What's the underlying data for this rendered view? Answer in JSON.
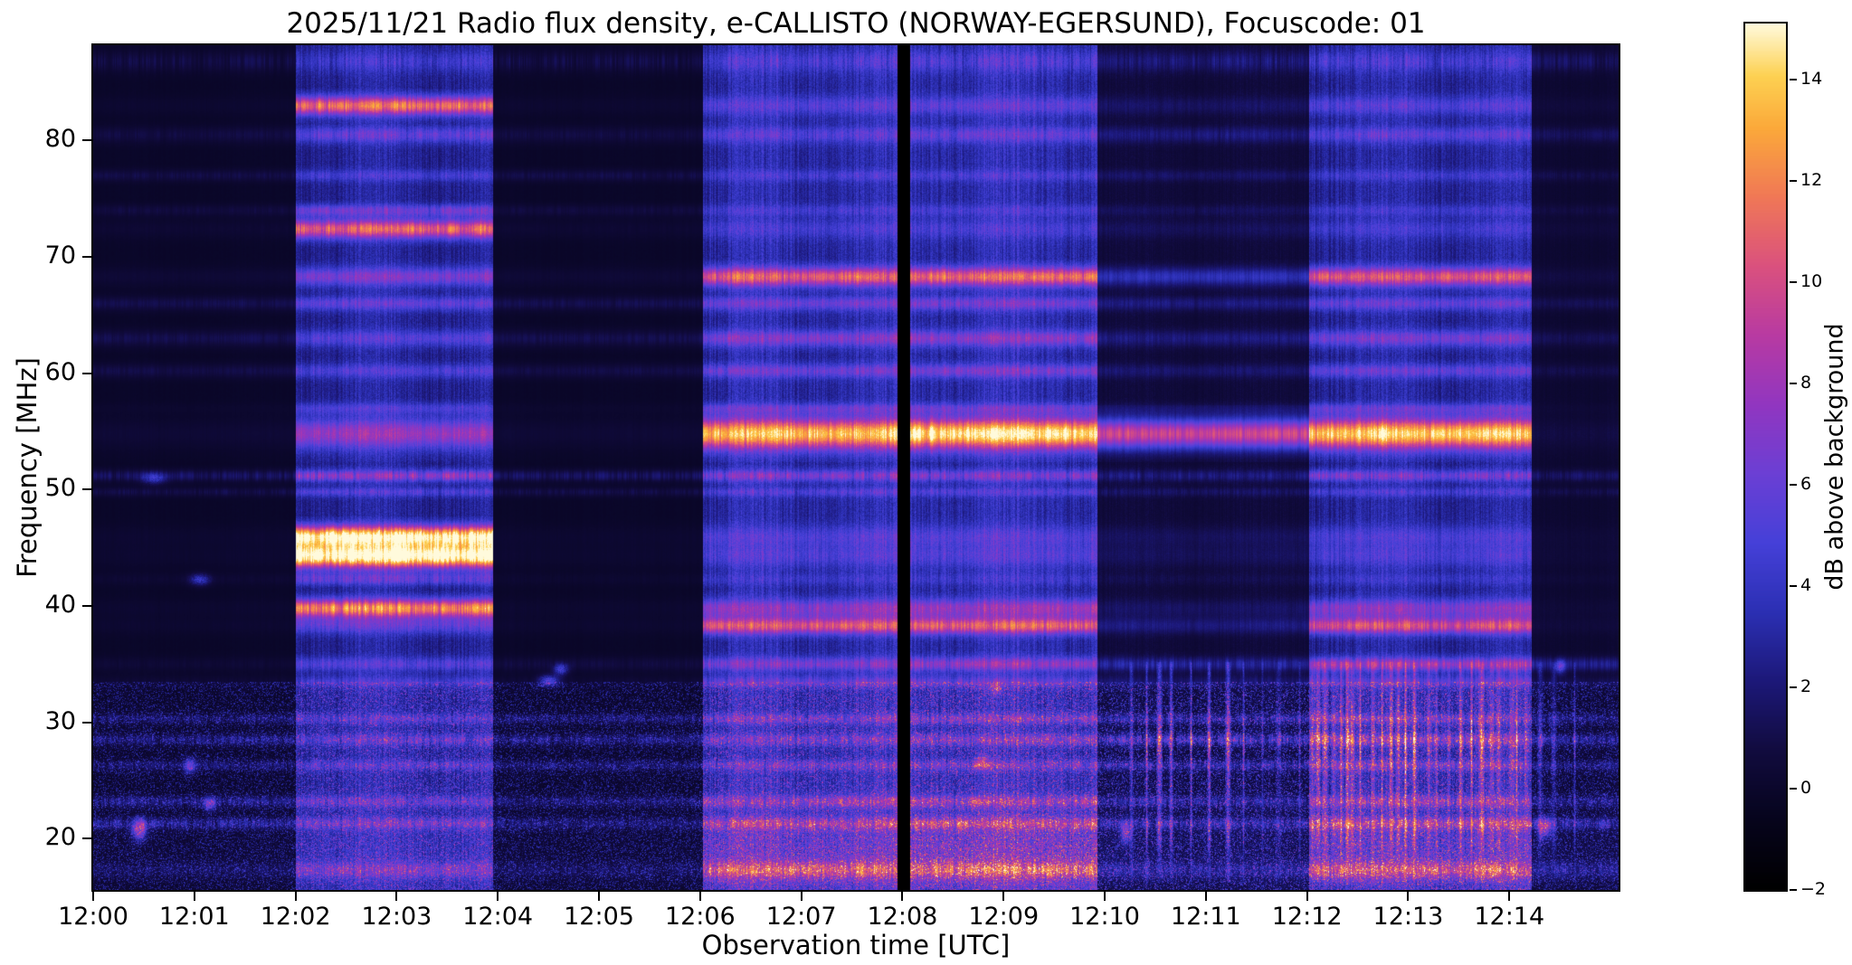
{
  "figure": {
    "title": "2025/11/21  Radio flux density, e-CALLISTO (NORWAY-EGERSUND), Focuscode: 01",
    "xlabel": "Observation time [UTC]",
    "ylabel": "Frequency [MHz]",
    "colorbar_label": "dB above background",
    "background": "#ffffff"
  },
  "chart_data": {
    "type": "heatmap",
    "subtype": "solar-radio-spectrogram",
    "title": "2025/11/21  Radio flux density, e-CALLISTO (NORWAY-EGERSUND), Focuscode: 01",
    "xlabel": "Observation time [UTC]",
    "ylabel": "Frequency [MHz]",
    "colorbar_label": "dB above background",
    "x_ticks": [
      [
        0,
        "12:00"
      ],
      [
        1,
        "12:01"
      ],
      [
        2,
        "12:02"
      ],
      [
        3,
        "12:03"
      ],
      [
        4,
        "12:04"
      ],
      [
        5,
        "12:05"
      ],
      [
        6,
        "12:06"
      ],
      [
        7,
        "12:07"
      ],
      [
        8,
        "12:08"
      ],
      [
        9,
        "12:09"
      ],
      [
        10,
        "12:10"
      ],
      [
        11,
        "12:11"
      ],
      [
        12,
        "12:12"
      ],
      [
        13,
        "12:13"
      ],
      [
        14,
        "12:14"
      ]
    ],
    "y_ticks": [
      [
        20,
        "20"
      ],
      [
        30,
        "30"
      ],
      [
        40,
        "40"
      ],
      [
        50,
        "50"
      ],
      [
        60,
        "60"
      ],
      [
        70,
        "70"
      ],
      [
        80,
        "80"
      ]
    ],
    "colorbar_ticks": [
      [
        -2,
        "−2"
      ],
      [
        0,
        "0"
      ],
      [
        2,
        "2"
      ],
      [
        4,
        "4"
      ],
      [
        6,
        "6"
      ],
      [
        8,
        "8"
      ],
      [
        10,
        "10"
      ],
      [
        12,
        "12"
      ],
      [
        14,
        "14"
      ]
    ],
    "x_range_minutes": [
      0,
      15.08
    ],
    "freq_range_mhz": [
      15.6,
      88.2
    ],
    "value_range_db": [
      -2,
      15.1
    ],
    "grid": false,
    "colormap": [
      [
        0.0,
        "#000000"
      ],
      [
        0.08,
        "#06041c"
      ],
      [
        0.16,
        "#110b3e"
      ],
      [
        0.24,
        "#1c1878"
      ],
      [
        0.32,
        "#2b2fb3"
      ],
      [
        0.4,
        "#4540d8"
      ],
      [
        0.48,
        "#6b3fd4"
      ],
      [
        0.56,
        "#9136c0"
      ],
      [
        0.64,
        "#b83aa2"
      ],
      [
        0.72,
        "#da517e"
      ],
      [
        0.8,
        "#f07856"
      ],
      [
        0.88,
        "#fba93a"
      ],
      [
        0.94,
        "#fdd152"
      ],
      [
        1.0,
        "#fffadc"
      ]
    ],
    "segments": [
      {
        "t0": 0.0,
        "t1": 2.0,
        "wash": 0.25
      },
      {
        "t0": 2.0,
        "t1": 3.95,
        "wash": 3.2
      },
      {
        "t0": 3.95,
        "t1": 6.03,
        "wash": 0.25
      },
      {
        "t0": 6.03,
        "t1": 7.95,
        "wash": 3.6
      },
      {
        "t0": 7.95,
        "t1": 8.08,
        "wash": -2.0
      },
      {
        "t0": 8.08,
        "t1": 9.93,
        "wash": 3.8
      },
      {
        "t0": 9.93,
        "t1": 12.02,
        "wash": 0.9
      },
      {
        "t0": 12.02,
        "t1": 14.22,
        "wash": 3.3
      },
      {
        "t0": 14.22,
        "t1": 15.08,
        "wash": 0.6
      }
    ],
    "spectral_lines": [
      {
        "f": 86.8,
        "w": 0.9,
        "jitter": 0.8,
        "amp": [
          1.0,
          1.6,
          1.0,
          1.8,
          0,
          1.8,
          1.4,
          1.8,
          1.2
        ]
      },
      {
        "f": 83.0,
        "w": 0.8,
        "jitter": 0.3,
        "amp": [
          0.3,
          8.5,
          0.3,
          2.2,
          0,
          2.4,
          1.0,
          2.4,
          0.4
        ]
      },
      {
        "f": 80.5,
        "w": 0.7,
        "jitter": 0.45,
        "amp": [
          0.9,
          3.0,
          0.9,
          2.2,
          0,
          2.6,
          1.6,
          2.6,
          1.1
        ]
      },
      {
        "f": 77.0,
        "w": 0.5,
        "jitter": 0.45,
        "amp": [
          1.0,
          2.0,
          1.0,
          1.6,
          0,
          1.6,
          1.0,
          1.6,
          0.8
        ]
      },
      {
        "f": 74.0,
        "w": 0.5,
        "jitter": 0.45,
        "amp": [
          0.8,
          3.5,
          0.8,
          1.5,
          0,
          1.5,
          0.8,
          1.5,
          0.6
        ]
      },
      {
        "f": 72.4,
        "w": 0.8,
        "jitter": 0.3,
        "amp": [
          0.4,
          8.0,
          0.4,
          1.6,
          0,
          1.6,
          0.8,
          1.6,
          0.4
        ]
      },
      {
        "f": 68.3,
        "w": 0.8,
        "jitter": 0.25,
        "amp": [
          0.5,
          4.0,
          0.5,
          7.5,
          0,
          8.0,
          3.0,
          7.5,
          0.6
        ]
      },
      {
        "f": 66.0,
        "w": 0.6,
        "jitter": 0.35,
        "amp": [
          1.2,
          3.0,
          1.2,
          3.0,
          0,
          3.2,
          1.6,
          3.0,
          1.0
        ]
      },
      {
        "f": 63.0,
        "w": 0.7,
        "jitter": 0.35,
        "amp": [
          1.2,
          2.6,
          1.2,
          3.6,
          0,
          4.0,
          1.6,
          3.6,
          1.0
        ]
      },
      {
        "f": 60.2,
        "w": 0.6,
        "jitter": 0.35,
        "amp": [
          1.0,
          2.4,
          1.0,
          3.0,
          0,
          3.4,
          1.2,
          3.0,
          0.8
        ]
      },
      {
        "f": 57.0,
        "w": 0.5,
        "jitter": 0.3,
        "amp": [
          0.2,
          2.0,
          0.2,
          2.4,
          0,
          2.4,
          0.8,
          2.4,
          0.2
        ]
      },
      {
        "f": 54.8,
        "w": 1.3,
        "jitter": 0.2,
        "amp": [
          0.5,
          5.0,
          0.5,
          10.5,
          0,
          11.5,
          9.0,
          11.0,
          0.6
        ]
      },
      {
        "f": 51.2,
        "w": 0.5,
        "jitter": 0.6,
        "amp": [
          1.6,
          4.5,
          1.6,
          3.5,
          0,
          3.5,
          1.6,
          3.5,
          1.3
        ]
      },
      {
        "f": 49.8,
        "w": 0.4,
        "jitter": 0.6,
        "amp": [
          1.0,
          2.4,
          1.0,
          2.0,
          0,
          2.0,
          1.0,
          2.0,
          0.8
        ]
      },
      {
        "f": 46.0,
        "w": 0.9,
        "jitter": 0.25,
        "amp": [
          0.3,
          12.5,
          0.3,
          2.0,
          0,
          2.0,
          0.8,
          2.0,
          0.3
        ]
      },
      {
        "f": 44.3,
        "w": 1.0,
        "jitter": 0.25,
        "amp": [
          0.3,
          13.5,
          0.3,
          2.0,
          0,
          2.0,
          0.8,
          2.0,
          0.3
        ]
      },
      {
        "f": 42.3,
        "w": 0.5,
        "jitter": 0.5,
        "amp": [
          0.4,
          3.0,
          0.3,
          1.2,
          0,
          1.2,
          0.5,
          1.2,
          0.3
        ]
      },
      {
        "f": 39.8,
        "w": 0.8,
        "jitter": 0.3,
        "amp": [
          0.3,
          9.5,
          0.3,
          4.2,
          0,
          4.6,
          1.0,
          4.2,
          0.3
        ]
      },
      {
        "f": 38.3,
        "w": 0.7,
        "jitter": 0.3,
        "amp": [
          0.3,
          3.0,
          0.3,
          7.0,
          0,
          7.5,
          1.6,
          7.0,
          0.4
        ]
      },
      {
        "f": 35.0,
        "w": 0.6,
        "jitter": 0.5,
        "amp": [
          0.5,
          2.5,
          0.8,
          3.6,
          0,
          4.0,
          2.2,
          5.0,
          2.2
        ]
      },
      {
        "f": 33.5,
        "w": 0.5,
        "jitter": 0.5,
        "amp": [
          0.5,
          2.0,
          0.5,
          2.6,
          0,
          2.6,
          1.2,
          2.6,
          0.9
        ]
      },
      {
        "f": 30.3,
        "w": 0.45,
        "jitter": 0.85,
        "amp": [
          1.5,
          2.0,
          1.5,
          2.6,
          0,
          2.6,
          2.0,
          2.6,
          1.5
        ]
      },
      {
        "f": 28.5,
        "w": 0.5,
        "jitter": 0.85,
        "amp": [
          1.8,
          2.2,
          1.8,
          2.6,
          0,
          2.9,
          2.8,
          3.2,
          2.0
        ]
      },
      {
        "f": 26.3,
        "w": 0.45,
        "jitter": 0.85,
        "amp": [
          1.5,
          2.0,
          1.5,
          2.3,
          0,
          2.5,
          2.2,
          2.5,
          1.5
        ]
      },
      {
        "f": 23.2,
        "w": 0.5,
        "jitter": 0.85,
        "amp": [
          1.8,
          2.4,
          1.5,
          3.0,
          0,
          3.4,
          1.8,
          3.0,
          1.5
        ]
      },
      {
        "f": 21.3,
        "w": 0.5,
        "jitter": 0.85,
        "amp": [
          2.2,
          2.4,
          1.5,
          3.4,
          0,
          3.8,
          2.0,
          3.4,
          2.2
        ]
      },
      {
        "f": 17.3,
        "w": 0.7,
        "jitter": 0.7,
        "amp": [
          1.0,
          2.6,
          1.0,
          4.4,
          0,
          4.8,
          1.5,
          4.4,
          1.6
        ]
      }
    ],
    "noise": {
      "f_max": 33.5,
      "speckle_amp": [
        1.3,
        1.5,
        1.3,
        1.6,
        0,
        1.8,
        1.7,
        1.9,
        1.4
      ],
      "low_boost": [
        0.3,
        0.8,
        0.3,
        2.2,
        0,
        2.6,
        0.5,
        1.8,
        0.5
      ],
      "low_center": 18.5,
      "low_width": 3.8
    },
    "streaks": {
      "zones": [
        {
          "t0": 10.25,
          "t1": 12.0,
          "spacing": 0.14,
          "amp_min": 2.5,
          "amp_max": 7.5
        },
        {
          "t0": 12.05,
          "t1": 14.2,
          "spacing": 0.09,
          "amp_min": 2.5,
          "amp_max": 8.5
        },
        {
          "t0": 14.25,
          "t1": 14.75,
          "spacing": 0.2,
          "amp_min": 3.0,
          "amp_max": 7.0
        }
      ],
      "profile": [
        {
          "f": 28.3,
          "w": 2.2,
          "a": 0.9
        },
        {
          "f": 20.8,
          "w": 1.8,
          "a": 0.55
        },
        {
          "f": 24.5,
          "w": 1.6,
          "a": 0.45
        },
        {
          "f": 31.8,
          "w": 1.3,
          "a": 0.4
        },
        {
          "f": 34.3,
          "w": 0.8,
          "a": 0.3
        }
      ],
      "base": 0.15,
      "f_max": 35.2
    },
    "blobs": [
      {
        "t": 0.45,
        "f": 20.8,
        "amp": 7.0,
        "wt": 0.07,
        "wf": 0.9
      },
      {
        "t": 0.95,
        "f": 26.3,
        "amp": 5.0,
        "wt": 0.06,
        "wf": 0.7
      },
      {
        "t": 1.15,
        "f": 23.0,
        "amp": 4.5,
        "wt": 0.06,
        "wf": 0.6
      },
      {
        "t": 1.05,
        "f": 42.3,
        "amp": 3.5,
        "wt": 0.1,
        "wf": 0.5
      },
      {
        "t": 0.6,
        "f": 51.0,
        "amp": 3.0,
        "wt": 0.12,
        "wf": 0.5
      },
      {
        "t": 4.5,
        "f": 33.6,
        "amp": 4.5,
        "wt": 0.1,
        "wf": 0.5
      },
      {
        "t": 4.62,
        "f": 34.6,
        "amp": 4.2,
        "wt": 0.07,
        "wf": 0.5
      },
      {
        "t": 8.78,
        "f": 26.6,
        "amp": 4.0,
        "wt": 0.06,
        "wf": 0.6
      },
      {
        "t": 8.92,
        "f": 33.0,
        "amp": 3.6,
        "wt": 0.05,
        "wf": 0.5
      },
      {
        "t": 10.2,
        "f": 20.5,
        "amp": 5.0,
        "wt": 0.05,
        "wf": 0.9
      },
      {
        "t": 14.35,
        "f": 21.0,
        "amp": 6.0,
        "wt": 0.06,
        "wf": 0.9
      },
      {
        "t": 14.5,
        "f": 34.8,
        "amp": 4.0,
        "wt": 0.05,
        "wf": 0.6
      }
    ]
  }
}
